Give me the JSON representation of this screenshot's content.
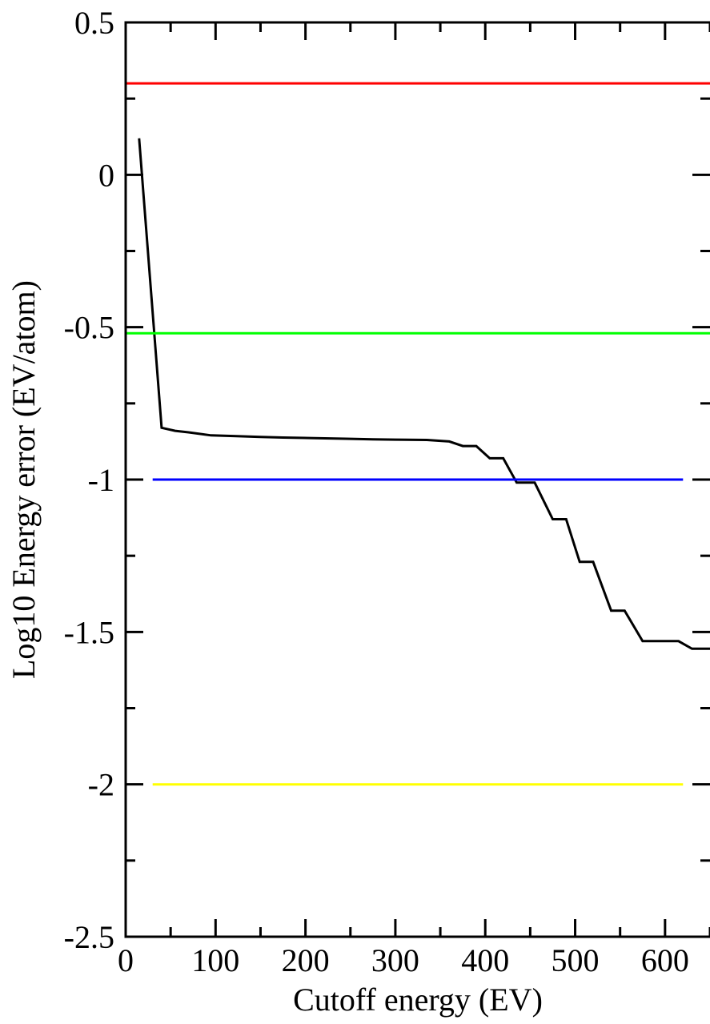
{
  "chart_data": {
    "type": "line",
    "title": "",
    "xlabel": "Cutoff energy (EV)",
    "ylabel": "Log10 Energy error (EV/atom)",
    "xlim": [
      0,
      650
    ],
    "ylim": [
      -2.5,
      0.5
    ],
    "x_ticks": [
      0,
      100,
      200,
      300,
      400,
      500,
      600
    ],
    "y_ticks": [
      0.5,
      0,
      -0.5,
      -1,
      -1.5,
      -2,
      -2.5
    ],
    "x_tick_labels": [
      "0",
      "100",
      "200",
      "300",
      "400",
      "500",
      "600"
    ],
    "y_tick_labels": [
      "0.5",
      "0",
      "-0.5",
      "-1",
      "-1.5",
      "-2",
      "-2.5"
    ],
    "grid": false,
    "legend": "none",
    "series": [
      {
        "color": "#000000",
        "x": [
          15,
          40,
          55,
          70,
          95,
          120,
          150,
          175,
          210,
          245,
          275,
          300,
          335,
          360,
          375,
          390,
          405,
          420,
          435,
          455,
          475,
          490,
          505,
          520,
          540,
          555,
          575,
          590,
          600,
          615,
          630,
          650
        ],
        "y": [
          0.12,
          -0.83,
          -0.84,
          -0.845,
          -0.855,
          -0.857,
          -0.86,
          -0.862,
          -0.864,
          -0.866,
          -0.868,
          -0.869,
          -0.87,
          -0.875,
          -0.89,
          -0.89,
          -0.93,
          -0.93,
          -1.01,
          -1.01,
          -1.13,
          -1.13,
          -1.27,
          -1.27,
          -1.43,
          -1.43,
          -1.53,
          -1.53,
          -1.53,
          -1.53,
          -1.555,
          -1.555
        ]
      },
      {
        "color": "#ff0000",
        "x": [
          0,
          650
        ],
        "y": [
          0.3,
          0.3
        ]
      },
      {
        "color": "#00ff00",
        "x": [
          0,
          650
        ],
        "y": [
          -0.52,
          -0.52
        ]
      },
      {
        "color": "#0000ff",
        "x": [
          30,
          620
        ],
        "y": [
          -1,
          -1
        ]
      },
      {
        "color": "#ffff00",
        "x": [
          30,
          620
        ],
        "y": [
          -2,
          -2
        ]
      }
    ]
  }
}
